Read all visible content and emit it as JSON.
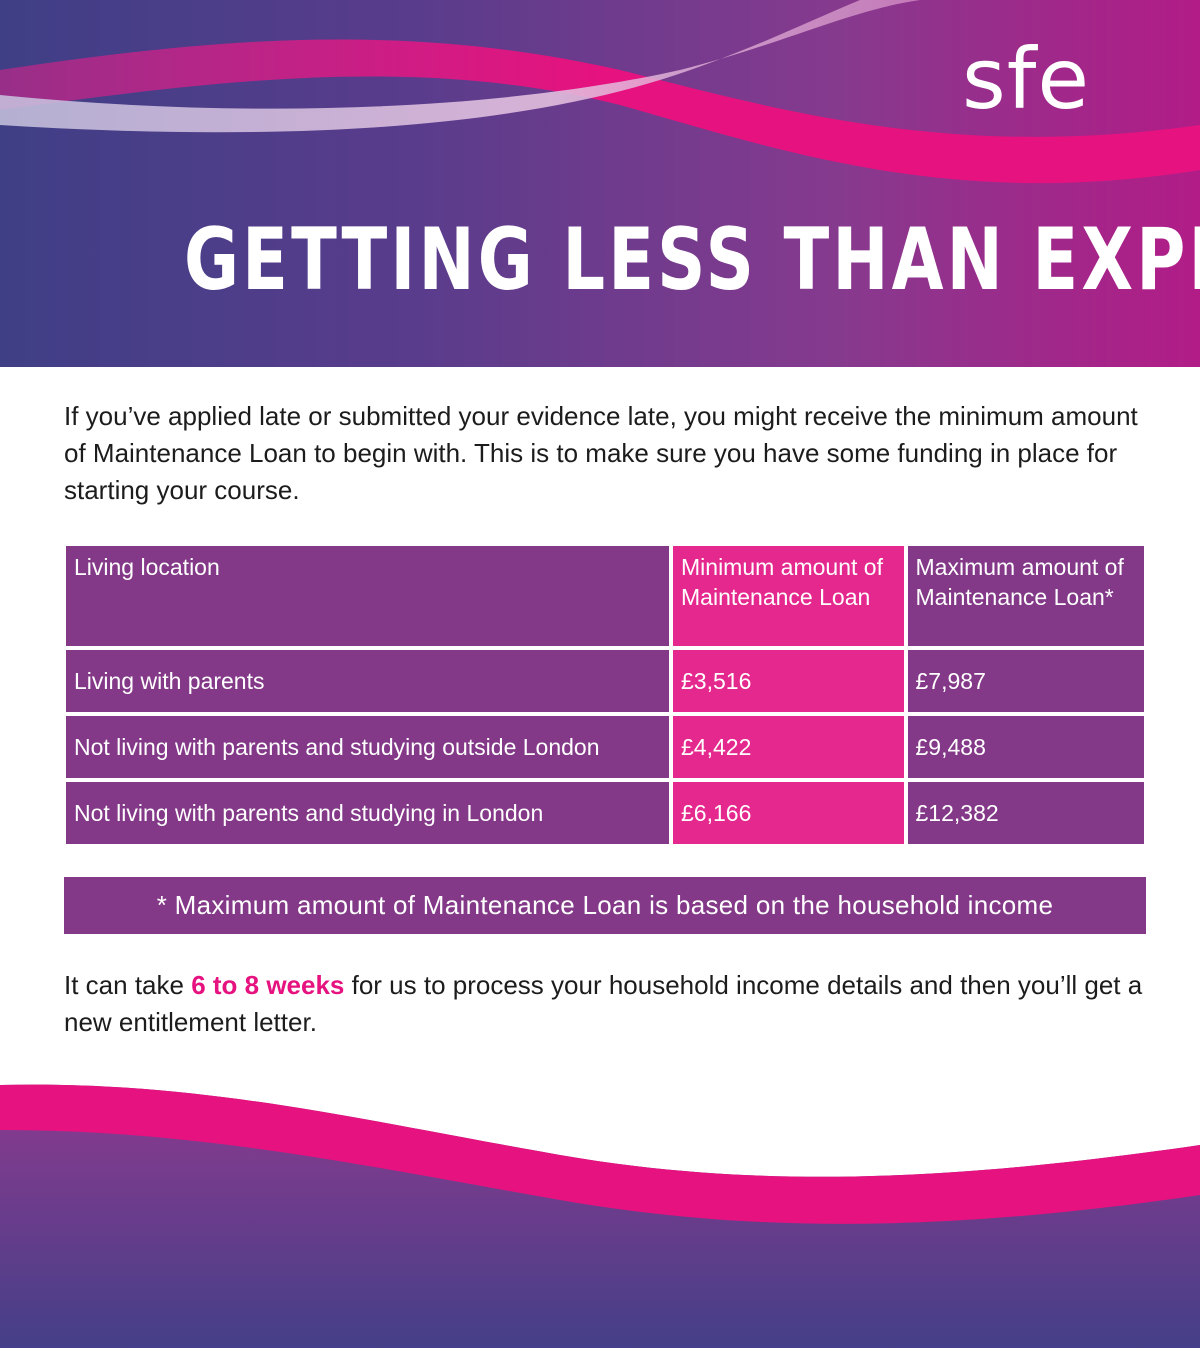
{
  "brand": {
    "logo_text": "sfe"
  },
  "header": {
    "title": "GETTING LESS THAN EXPECTED?"
  },
  "intro": {
    "text": "If you’ve applied late or submitted your evidence late, you might receive the minimum amount of Maintenance Loan to begin with. This is to make sure you have some funding in place for starting your course."
  },
  "table": {
    "headers": [
      "Living location",
      "Minimum amount of Maintenance Loan",
      "Maximum amount of Maintenance Loan*"
    ],
    "rows": [
      {
        "location": "Living with parents",
        "min": "£3,516",
        "max": "£7,987"
      },
      {
        "location": "Not living with parents and studying outside London",
        "min": "£4,422",
        "max": "£9,488"
      },
      {
        "location": "Not living with parents and studying in London",
        "min": "£6,166",
        "max": "£12,382"
      }
    ]
  },
  "footnote": {
    "text": "* Maximum amount of Maintenance Loan is based on the household income"
  },
  "outro": {
    "before": "It can take ",
    "highlight": "6 to 8 weeks",
    "after": " for us to process your household income details and then you’ll get a new entitlement letter."
  },
  "colors": {
    "purple": "#833888",
    "pink": "#e5288e",
    "highlight": "#e5127f",
    "navy": "#3f3f86"
  }
}
